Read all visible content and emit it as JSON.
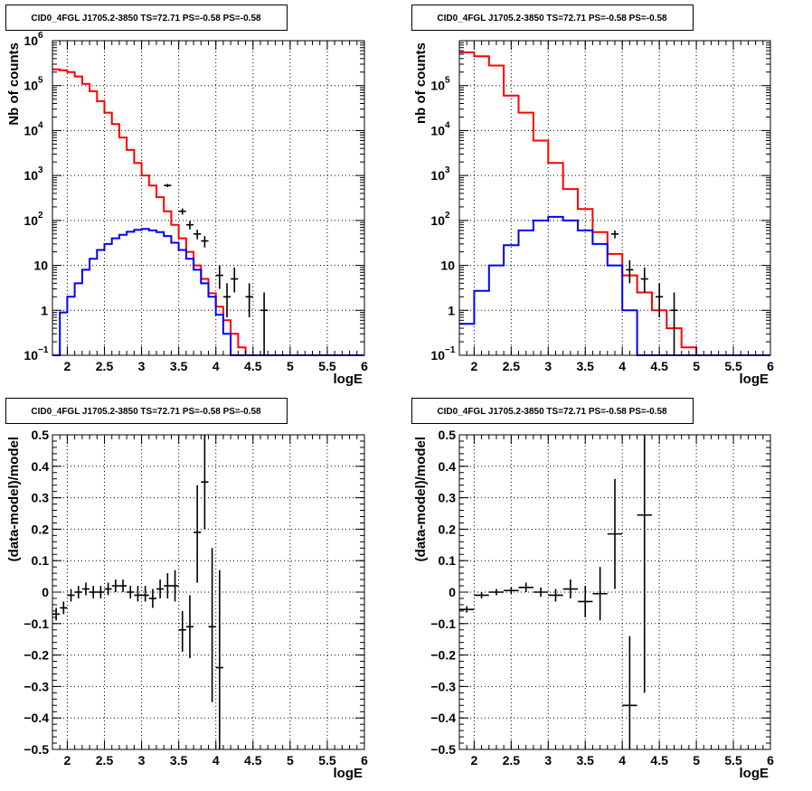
{
  "chart_data": [
    {
      "type": "line",
      "title": "CID0_4FGL J1705.2-3850 TS=72.71 PS=-0.58 PS=-0.58",
      "xlabel": "logE",
      "ylabel": "Nb of counts",
      "xlim": [
        1.8,
        6.0
      ],
      "ylim": [
        0.1,
        1000000
      ],
      "yscale": "log",
      "grid": true,
      "x_ticks": [
        "2",
        "2.5",
        "3",
        "3.5",
        "4",
        "4.5",
        "5",
        "5.5",
        "6"
      ],
      "y_ticks": [
        {
          "v": 0.1,
          "base": "10",
          "exp": "−1"
        },
        {
          "v": 1,
          "base": "1",
          "exp": ""
        },
        {
          "v": 10,
          "base": "10",
          "exp": ""
        },
        {
          "v": 100,
          "base": "10",
          "exp": "2"
        },
        {
          "v": 1000,
          "base": "10",
          "exp": "3"
        },
        {
          "v": 10000,
          "base": "10",
          "exp": "4"
        },
        {
          "v": 100000,
          "base": "10",
          "exp": "5"
        },
        {
          "v": 1000000,
          "base": "10",
          "exp": "6"
        }
      ],
      "bin_edges": [
        1.8,
        1.9,
        2.0,
        2.1,
        2.2,
        2.3,
        2.4,
        2.5,
        2.6,
        2.7,
        2.8,
        2.9,
        3.0,
        3.1,
        3.2,
        3.3,
        3.4,
        3.5,
        3.6,
        3.7,
        3.8,
        3.9,
        4.0,
        4.1,
        4.2,
        4.3,
        4.4,
        4.5,
        4.6,
        4.7,
        4.8,
        4.9,
        5.0,
        5.1,
        5.2,
        5.3,
        5.4,
        5.5,
        5.6,
        5.7,
        5.8,
        5.9,
        6.0
      ],
      "series": [
        {
          "color": "#ff0000",
          "kind": "step",
          "values": [
            230000,
            220000,
            200000,
            160000,
            110000,
            75000,
            45000,
            25000,
            14000,
            7000,
            3700,
            1900,
            1000,
            600,
            330,
            160,
            80,
            40,
            20,
            10,
            5,
            2.4,
            1.2,
            0.6,
            0.3,
            0.15,
            0.1,
            0.1,
            0.1,
            0.1,
            0.1,
            0.1,
            0.1,
            0.1,
            0.1,
            0.1,
            0.1,
            0.1,
            0.1,
            0.1,
            0.1,
            0.1
          ]
        },
        {
          "color": "#0000ff",
          "kind": "step",
          "values": [
            0.1,
            0.9,
            2.0,
            4.0,
            8.0,
            14,
            22,
            30,
            40,
            48,
            56,
            62,
            65,
            60,
            55,
            45,
            32,
            22,
            14,
            8,
            4,
            2,
            0.8,
            0.3,
            0.1,
            0.1,
            0.1,
            0.1,
            0.1,
            0.1,
            0.1,
            0.1,
            0.1,
            0.1,
            0.1,
            0.1,
            0.1,
            0.1,
            0.1,
            0.1,
            0.1,
            0.1
          ]
        },
        {
          "color": "#000000",
          "kind": "points",
          "points": [
            {
              "x": 3.35,
              "y": 600,
              "lo": 550,
              "hi": 650
            },
            {
              "x": 3.55,
              "y": 160,
              "lo": 135,
              "hi": 185
            },
            {
              "x": 3.65,
              "y": 80,
              "lo": 63,
              "hi": 97
            },
            {
              "x": 3.75,
              "y": 50,
              "lo": 38,
              "hi": 62
            },
            {
              "x": 3.85,
              "y": 35,
              "lo": 25,
              "hi": 45
            },
            {
              "x": 4.05,
              "y": 6,
              "lo": 3,
              "hi": 10
            },
            {
              "x": 4.15,
              "y": 2,
              "lo": 0.7,
              "hi": 4
            },
            {
              "x": 4.25,
              "y": 5,
              "lo": 2.5,
              "hi": 9
            },
            {
              "x": 4.45,
              "y": 2,
              "lo": 0.7,
              "hi": 4
            },
            {
              "x": 4.65,
              "y": 1,
              "lo": 0.1,
              "hi": 2.5
            }
          ]
        }
      ]
    },
    {
      "type": "line",
      "title": "CID0_4FGL J1705.2-3850 TS=72.71 PS=-0.58 PS=-0.58",
      "xlabel": "logE",
      "ylabel": "nb of counts",
      "xlim": [
        1.8,
        6.0
      ],
      "ylim": [
        0.1,
        1000000
      ],
      "yscale": "log",
      "grid": true,
      "x_ticks": [
        "2",
        "2.5",
        "3",
        "3.5",
        "4",
        "4.5",
        "5",
        "5.5",
        "6"
      ],
      "y_ticks": [
        {
          "v": 0.1,
          "base": "10",
          "exp": "−1"
        },
        {
          "v": 1,
          "base": "1",
          "exp": ""
        },
        {
          "v": 10,
          "base": "10",
          "exp": ""
        },
        {
          "v": 100,
          "base": "10",
          "exp": "2"
        },
        {
          "v": 1000,
          "base": "10",
          "exp": "3"
        },
        {
          "v": 10000,
          "base": "10",
          "exp": "4"
        },
        {
          "v": 100000,
          "base": "10",
          "exp": "5"
        }
      ],
      "bin_edges": [
        1.8,
        2.0,
        2.2,
        2.4,
        2.6,
        2.8,
        3.0,
        3.2,
        3.4,
        3.6,
        3.8,
        4.0,
        4.2,
        4.4,
        4.6,
        4.8,
        5.0,
        5.2,
        5.4,
        5.6,
        5.8,
        6.0
      ],
      "series": [
        {
          "color": "#ff0000",
          "kind": "step",
          "values": [
            550000,
            450000,
            280000,
            60000,
            25000,
            6000,
            1900,
            500,
            180,
            55,
            18,
            6,
            2.5,
            1,
            0.4,
            0.15,
            0.1,
            0.1,
            0.1,
            0.1,
            0.1
          ]
        },
        {
          "color": "#0000ff",
          "kind": "step",
          "values": [
            0.5,
            2.7,
            10,
            28,
            60,
            100,
            120,
            100,
            60,
            30,
            10,
            1,
            0.1,
            0.1,
            0.1,
            0.1,
            0.1,
            0.1,
            0.1,
            0.1,
            0.1
          ]
        },
        {
          "color": "#000000",
          "kind": "points",
          "points": [
            {
              "x": 3.9,
              "y": 50,
              "lo": 40,
              "hi": 60
            },
            {
              "x": 4.1,
              "y": 8,
              "lo": 4,
              "hi": 13
            },
            {
              "x": 4.3,
              "y": 5,
              "lo": 2.5,
              "hi": 9
            },
            {
              "x": 4.5,
              "y": 2,
              "lo": 0.7,
              "hi": 4
            },
            {
              "x": 4.7,
              "y": 1,
              "lo": 0.1,
              "hi": 2.5
            }
          ]
        }
      ]
    },
    {
      "type": "scatter",
      "title": "CID0_4FGL J1705.2-3850 TS=72.71 PS=-0.58 PS=-0.58",
      "xlabel": "logE",
      "ylabel": "(data-model)/model",
      "xlim": [
        1.8,
        6.0
      ],
      "ylim": [
        -0.5,
        0.5
      ],
      "grid": true,
      "x_ticks": [
        "2",
        "2.5",
        "3",
        "3.5",
        "4",
        "4.5",
        "5",
        "5.5",
        "6"
      ],
      "y_ticks": [
        "−0.5",
        "−0.4",
        "−0.3",
        "−0.2",
        "−0.1",
        "0",
        "0.1",
        "0.2",
        "0.3",
        "0.4",
        "0.5"
      ],
      "xerr": 0.05,
      "points": [
        {
          "x": 1.85,
          "y": -0.07,
          "lo": -0.09,
          "hi": -0.05
        },
        {
          "x": 1.95,
          "y": -0.05,
          "lo": -0.07,
          "hi": -0.03
        },
        {
          "x": 2.05,
          "y": -0.01,
          "lo": -0.03,
          "hi": 0.01
        },
        {
          "x": 2.15,
          "y": 0.0,
          "lo": -0.02,
          "hi": 0.02
        },
        {
          "x": 2.25,
          "y": 0.01,
          "lo": -0.01,
          "hi": 0.03
        },
        {
          "x": 2.35,
          "y": 0.0,
          "lo": -0.02,
          "hi": 0.02
        },
        {
          "x": 2.45,
          "y": 0.0,
          "lo": -0.02,
          "hi": 0.02
        },
        {
          "x": 2.55,
          "y": 0.01,
          "lo": -0.01,
          "hi": 0.03
        },
        {
          "x": 2.65,
          "y": 0.02,
          "lo": 0.0,
          "hi": 0.04
        },
        {
          "x": 2.75,
          "y": 0.02,
          "lo": 0.0,
          "hi": 0.04
        },
        {
          "x": 2.85,
          "y": 0.0,
          "lo": -0.02,
          "hi": 0.02
        },
        {
          "x": 2.95,
          "y": -0.01,
          "lo": -0.03,
          "hi": 0.02
        },
        {
          "x": 3.05,
          "y": -0.01,
          "lo": -0.03,
          "hi": 0.02
        },
        {
          "x": 3.15,
          "y": -0.02,
          "lo": -0.05,
          "hi": 0.01
        },
        {
          "x": 3.25,
          "y": 0.01,
          "lo": -0.02,
          "hi": 0.04
        },
        {
          "x": 3.35,
          "y": 0.02,
          "lo": -0.02,
          "hi": 0.06
        },
        {
          "x": 3.45,
          "y": 0.02,
          "lo": -0.03,
          "hi": 0.07
        },
        {
          "x": 3.55,
          "y": -0.12,
          "lo": -0.19,
          "hi": -0.06
        },
        {
          "x": 3.65,
          "y": -0.11,
          "lo": -0.21,
          "hi": -0.01
        },
        {
          "x": 3.75,
          "y": 0.19,
          "lo": 0.03,
          "hi": 0.34
        },
        {
          "x": 3.85,
          "y": 0.35,
          "lo": 0.2,
          "hi": 0.5
        },
        {
          "x": 3.95,
          "y": -0.11,
          "lo": -0.35,
          "hi": 0.14
        },
        {
          "x": 4.05,
          "y": -0.24,
          "lo": -0.5,
          "hi": 0.07
        }
      ]
    },
    {
      "type": "scatter",
      "title": "CID0_4FGL J1705.2-3850 TS=72.71 PS=-0.58 PS=-0.58",
      "xlabel": "logE",
      "ylabel": "(data-model)/model",
      "xlim": [
        1.8,
        6.0
      ],
      "ylim": [
        -0.5,
        0.5
      ],
      "grid": true,
      "x_ticks": [
        "2",
        "2.5",
        "3",
        "3.5",
        "4",
        "4.5",
        "5",
        "5.5",
        "6"
      ],
      "y_ticks": [
        "−0.5",
        "−0.4",
        "−0.3",
        "−0.2",
        "−0.1",
        "0",
        "0.1",
        "0.2",
        "0.3",
        "0.4",
        "0.5"
      ],
      "xerr": 0.1,
      "points": [
        {
          "x": 1.9,
          "y": -0.055,
          "lo": -0.065,
          "hi": -0.045
        },
        {
          "x": 2.1,
          "y": -0.01,
          "lo": -0.02,
          "hi": 0.0
        },
        {
          "x": 2.3,
          "y": 0.0,
          "lo": -0.01,
          "hi": 0.01
        },
        {
          "x": 2.5,
          "y": 0.005,
          "lo": -0.005,
          "hi": 0.015
        },
        {
          "x": 2.7,
          "y": 0.015,
          "lo": 0.0,
          "hi": 0.03
        },
        {
          "x": 2.9,
          "y": 0.0,
          "lo": -0.015,
          "hi": 0.015
        },
        {
          "x": 3.1,
          "y": -0.01,
          "lo": -0.03,
          "hi": 0.01
        },
        {
          "x": 3.3,
          "y": 0.01,
          "lo": -0.02,
          "hi": 0.04
        },
        {
          "x": 3.5,
          "y": -0.03,
          "lo": -0.08,
          "hi": 0.02
        },
        {
          "x": 3.7,
          "y": -0.005,
          "lo": -0.09,
          "hi": 0.08
        },
        {
          "x": 3.9,
          "y": 0.185,
          "lo": 0.01,
          "hi": 0.36
        },
        {
          "x": 4.1,
          "y": -0.36,
          "lo": -0.5,
          "hi": -0.14
        },
        {
          "x": 4.3,
          "y": 0.245,
          "lo": -0.32,
          "hi": 0.5
        }
      ]
    }
  ]
}
